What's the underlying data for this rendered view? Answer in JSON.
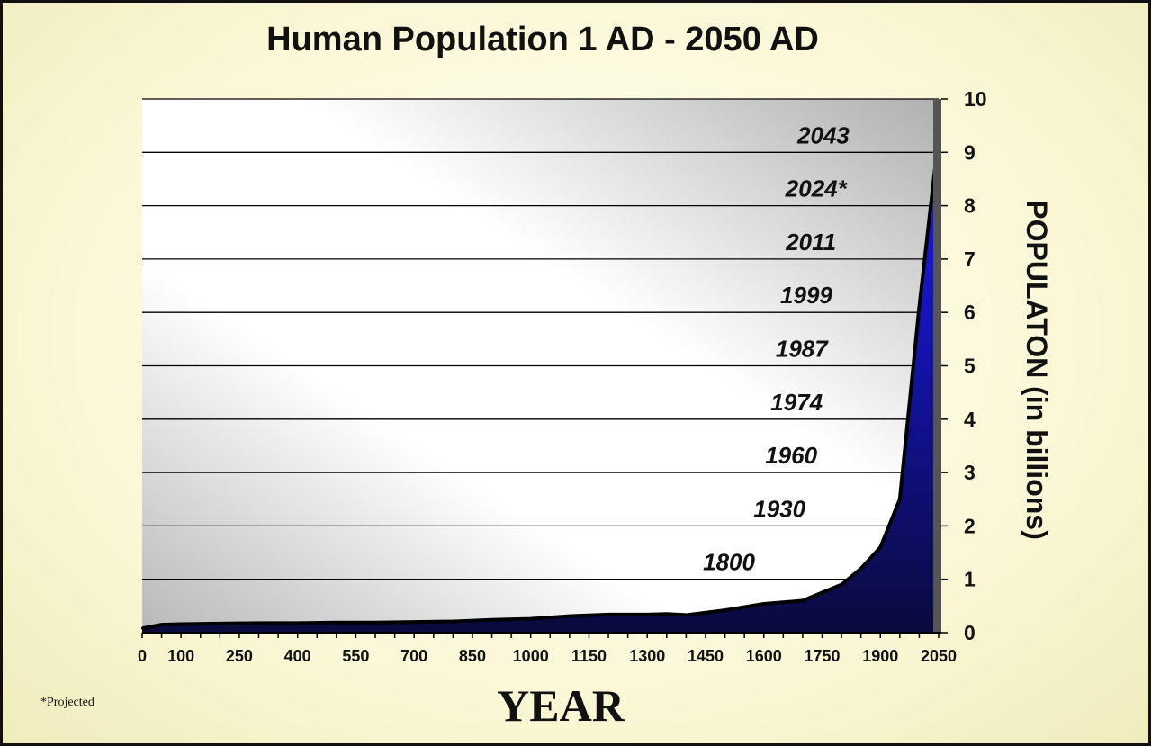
{
  "chart_data": {
    "type": "area",
    "title": "Human Population 1 AD - 2050 AD",
    "xlabel": "YEAR",
    "ylabel": "POPULATON (in billions)",
    "note": "*Projected",
    "xlim": [
      0,
      2050
    ],
    "ylim": [
      0,
      10
    ],
    "x_ticks": [
      "0",
      "100",
      "250",
      "400",
      "550",
      "700",
      "850",
      "1000",
      "1150",
      "1300",
      "1450",
      "1600",
      "1750",
      "1900",
      "2050"
    ],
    "y_ticks": [
      "0",
      "1",
      "2",
      "3",
      "4",
      "5",
      "6",
      "7",
      "8",
      "9",
      "10"
    ],
    "grid": true,
    "series": [
      {
        "values": [
          {
            "x": 0,
            "y": 0.08
          },
          {
            "x": 50,
            "y": 0.15
          },
          {
            "x": 100,
            "y": 0.16
          },
          {
            "x": 200,
            "y": 0.17
          },
          {
            "x": 300,
            "y": 0.18
          },
          {
            "x": 400,
            "y": 0.18
          },
          {
            "x": 500,
            "y": 0.19
          },
          {
            "x": 600,
            "y": 0.19
          },
          {
            "x": 700,
            "y": 0.2
          },
          {
            "x": 800,
            "y": 0.21
          },
          {
            "x": 900,
            "y": 0.24
          },
          {
            "x": 1000,
            "y": 0.26
          },
          {
            "x": 1100,
            "y": 0.31
          },
          {
            "x": 1200,
            "y": 0.34
          },
          {
            "x": 1300,
            "y": 0.34
          },
          {
            "x": 1350,
            "y": 0.35
          },
          {
            "x": 1400,
            "y": 0.33
          },
          {
            "x": 1500,
            "y": 0.42
          },
          {
            "x": 1600,
            "y": 0.54
          },
          {
            "x": 1700,
            "y": 0.6
          },
          {
            "x": 1750,
            "y": 0.75
          },
          {
            "x": 1800,
            "y": 0.9
          },
          {
            "x": 1850,
            "y": 1.2
          },
          {
            "x": 1900,
            "y": 1.6
          },
          {
            "x": 1950,
            "y": 2.5
          },
          {
            "x": 2000,
            "y": 6.1
          },
          {
            "x": 2050,
            "y": 9.3
          }
        ]
      }
    ],
    "annotations": [
      {
        "text": "1800",
        "billion": 1
      },
      {
        "text": "1930",
        "billion": 2
      },
      {
        "text": "1960",
        "billion": 3
      },
      {
        "text": "1974",
        "billion": 4
      },
      {
        "text": "1987",
        "billion": 5
      },
      {
        "text": "1999",
        "billion": 6
      },
      {
        "text": "2011",
        "billion": 7
      },
      {
        "text": "2024*",
        "billion": 8
      },
      {
        "text": "2043",
        "billion": 9
      }
    ],
    "colors": {
      "fill_top": "#1a1aff",
      "fill_bottom": "#0a0a3c",
      "line": "#000000",
      "background": "#f3f0c4"
    }
  }
}
